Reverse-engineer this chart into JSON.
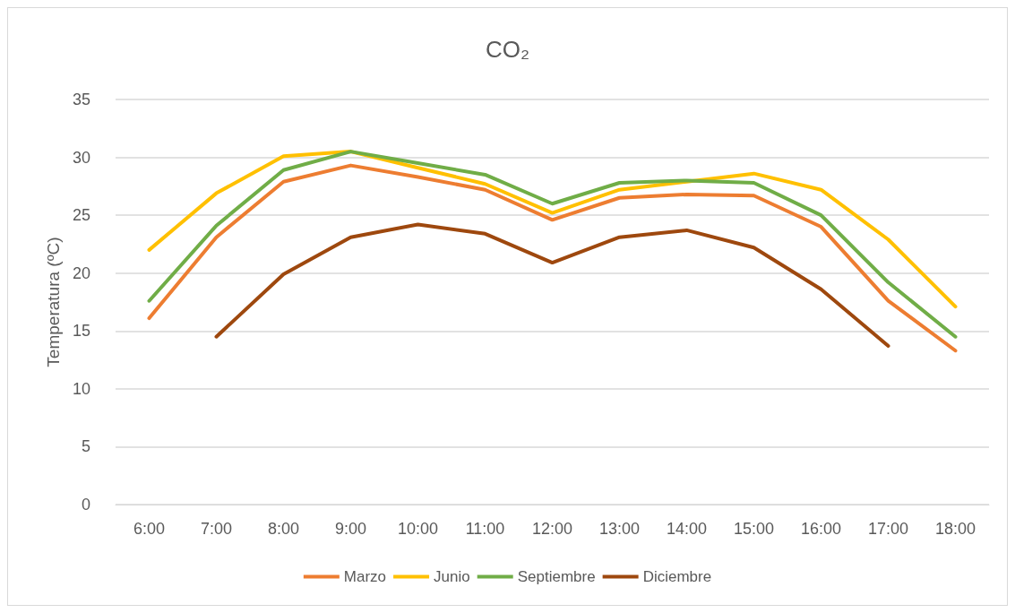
{
  "chart_data": {
    "type": "line",
    "title": "CO₂",
    "ylabel": "Temperatura (ºC)",
    "categories": [
      "6:00",
      "7:00",
      "8:00",
      "9:00",
      "10:00",
      "11:00",
      "12:00",
      "13:00",
      "14:00",
      "15:00",
      "16:00",
      "17:00",
      "18:00"
    ],
    "series": [
      {
        "name": "Marzo",
        "color": "#ed7d31",
        "values": [
          16.1,
          23.1,
          27.9,
          29.3,
          28.3,
          27.2,
          24.6,
          26.5,
          26.8,
          26.7,
          24.0,
          17.6,
          13.3
        ]
      },
      {
        "name": "Junio",
        "color": "#ffc000",
        "values": [
          22.0,
          26.9,
          30.1,
          30.5,
          29.1,
          27.7,
          25.2,
          27.2,
          27.9,
          28.6,
          27.2,
          22.9,
          17.1
        ]
      },
      {
        "name": "Septiembre",
        "color": "#70ad47",
        "values": [
          17.6,
          24.1,
          28.9,
          30.5,
          29.5,
          28.5,
          26.0,
          27.8,
          28.0,
          27.8,
          25.0,
          19.2,
          14.5
        ]
      },
      {
        "name": "Diciembre",
        "color": "#9e480e",
        "values": [
          null,
          14.5,
          19.9,
          23.1,
          24.2,
          23.4,
          20.9,
          23.1,
          23.7,
          22.2,
          18.6,
          13.7,
          null
        ]
      }
    ],
    "ylim": [
      0,
      35
    ],
    "yticks": [
      0,
      5,
      10,
      15,
      20,
      25,
      30,
      35
    ],
    "grid": "y",
    "legend": "bottom",
    "marker": "none",
    "line_style": "solid"
  }
}
